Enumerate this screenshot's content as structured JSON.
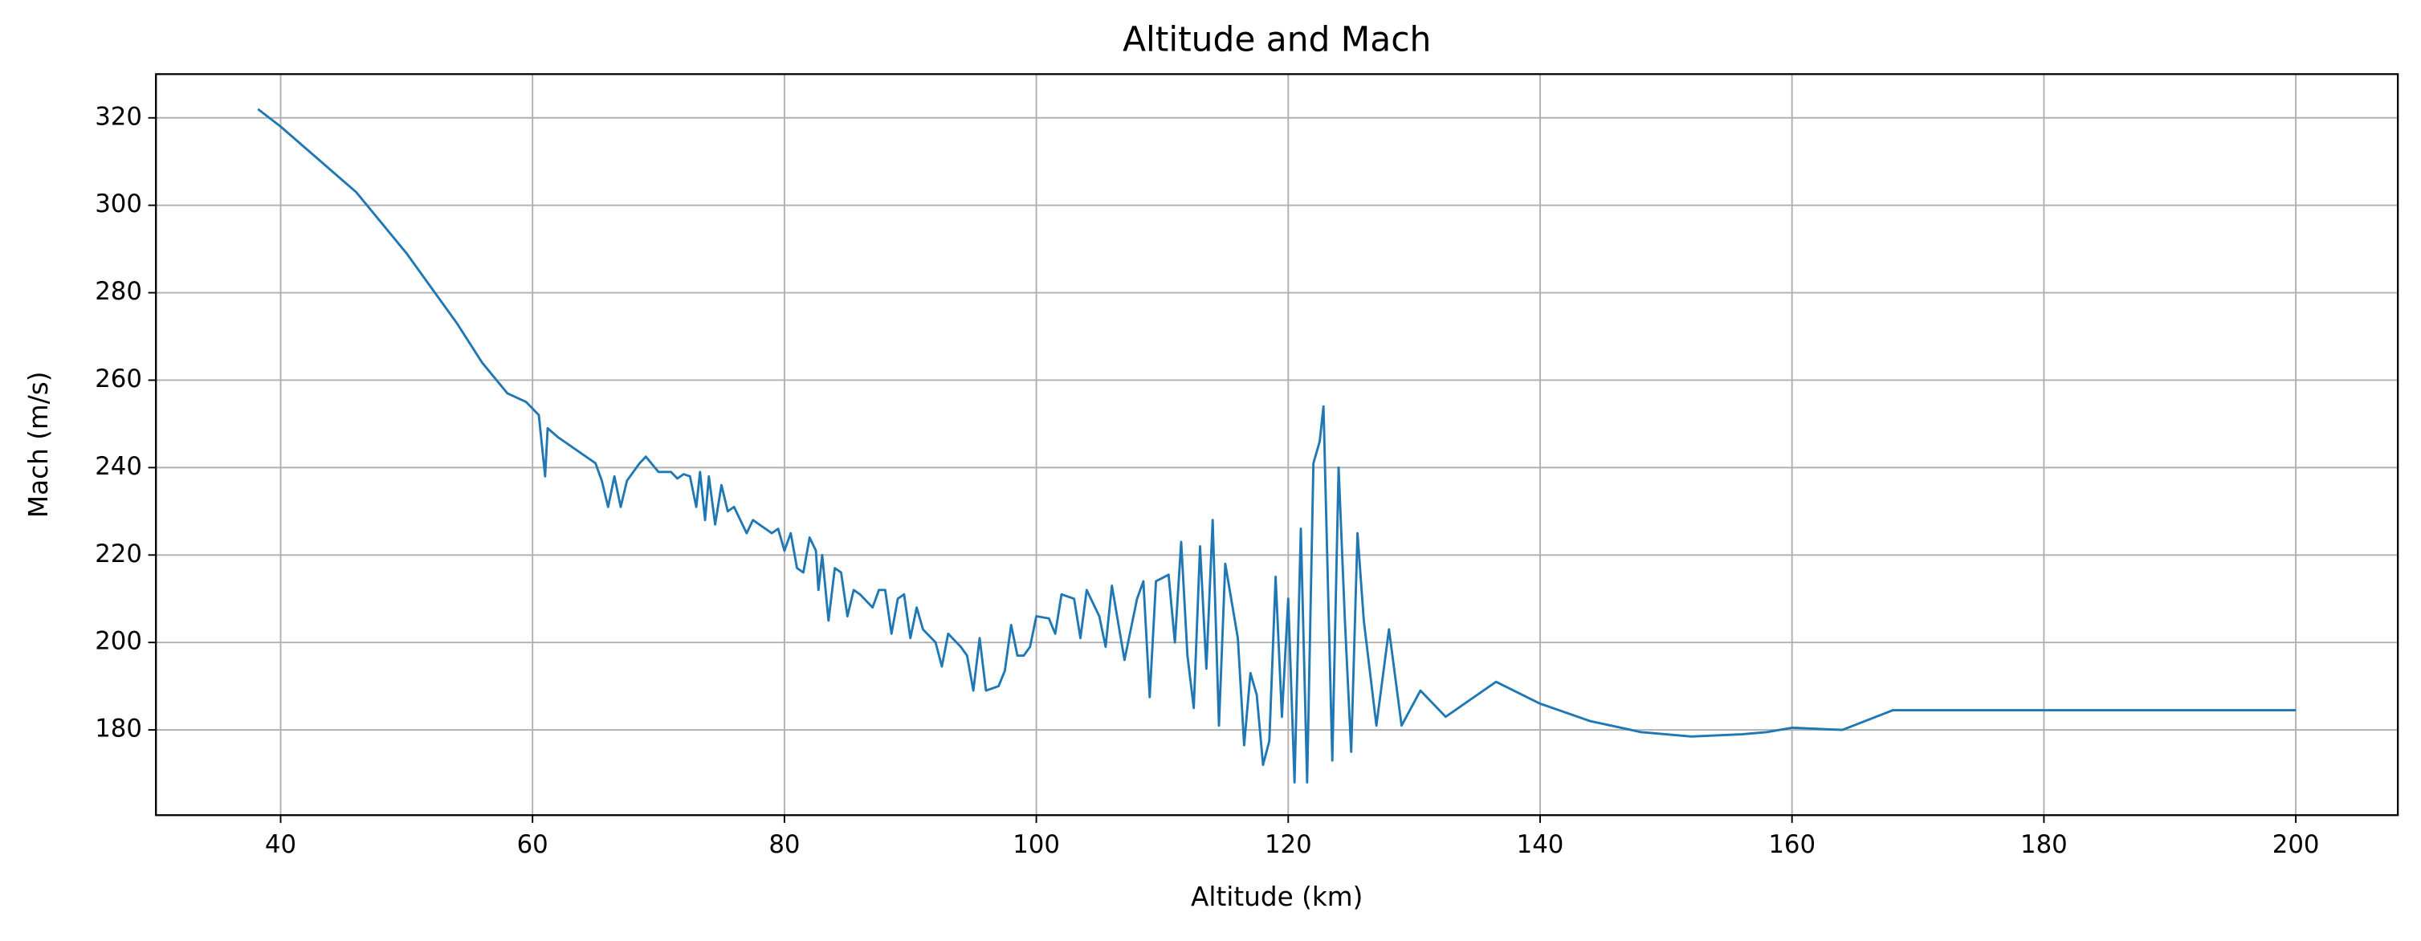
{
  "chart_data": {
    "type": "line",
    "title": "Altitude and Mach",
    "x_label": "Altitude (km)",
    "y_label": "Mach (m/s)",
    "x": [
      38.2,
      40,
      42,
      44,
      46,
      48,
      50,
      52,
      54,
      56,
      58,
      59.5,
      60.5,
      61,
      61.2,
      62,
      63,
      64,
      65,
      65.5,
      66,
      66.5,
      67,
      67.5,
      68.5,
      69,
      70,
      71,
      71.5,
      72,
      72.5,
      73,
      73.3,
      73.7,
      74,
      74.5,
      75,
      75.5,
      76,
      77,
      77.5,
      78,
      79,
      79.5,
      80,
      80.5,
      81,
      81.5,
      82,
      82.5,
      82.7,
      83,
      83.5,
      84,
      84.5,
      85,
      85.5,
      86,
      87,
      87.5,
      88,
      88.5,
      89,
      89.5,
      90,
      90.5,
      91,
      92,
      92.5,
      93,
      94,
      94.5,
      95,
      95.5,
      96,
      97,
      97.5,
      98,
      98.5,
      99,
      99.5,
      100,
      101,
      101.5,
      102,
      103,
      103.5,
      104,
      105,
      105.5,
      106,
      107,
      108,
      108.5,
      109,
      109.5,
      110.5,
      111,
      111.5,
      112,
      112.5,
      113,
      113.5,
      114,
      114.5,
      115,
      116,
      116.5,
      117,
      117.5,
      118,
      118.5,
      119,
      119.5,
      120,
      120.5,
      121,
      121.5,
      122,
      122.5,
      122.8,
      123.5,
      124,
      124.5,
      125,
      125.5,
      126,
      127,
      128,
      129,
      130.5,
      132.5,
      134.5,
      136.5,
      140,
      144,
      148,
      152,
      156,
      158,
      160,
      164,
      168,
      200
    ],
    "series": [
      {
        "name": "Mach",
        "color": "#1f77b4",
        "values": [
          322,
          318,
          313,
          308,
          303,
          296,
          289,
          281,
          273,
          264,
          257,
          255,
          252,
          238,
          249,
          247,
          245,
          243,
          241,
          237,
          231,
          238,
          231,
          237,
          241,
          242.5,
          239,
          239,
          237.5,
          238.5,
          238,
          231,
          239,
          228,
          238,
          227,
          236,
          230,
          231,
          225,
          228,
          227,
          225,
          226,
          221,
          225,
          217,
          216,
          224,
          221,
          212,
          220,
          205,
          217,
          216,
          206,
          212,
          211,
          208,
          212,
          212,
          202,
          210,
          211,
          201,
          208,
          203,
          200,
          194.5,
          202,
          199,
          197,
          189,
          201,
          189,
          190,
          193.5,
          204,
          197,
          197,
          199,
          206,
          205.5,
          202,
          211,
          210,
          201,
          212,
          206,
          199,
          213,
          196,
          210,
          214,
          187.5,
          214,
          215.5,
          200,
          223,
          197,
          185,
          222,
          194,
          228,
          181,
          218,
          201,
          176.5,
          193,
          188,
          172,
          177.5,
          215,
          183,
          210,
          168,
          226,
          168,
          241,
          246,
          254,
          173,
          240,
          205,
          175,
          225,
          205,
          181,
          203,
          181,
          189,
          183,
          187,
          191,
          186,
          182,
          179.5,
          178.5,
          179,
          179.5,
          180.5,
          180,
          184.5,
          184.5
        ]
      }
    ],
    "xlim": [
      30.1,
      208.1
    ],
    "ylim": [
      160.5,
      330
    ],
    "xticks": [
      40,
      60,
      80,
      100,
      120,
      140,
      160,
      180,
      200
    ],
    "yticks": [
      180,
      200,
      220,
      240,
      260,
      280,
      300,
      320
    ],
    "grid": true
  }
}
